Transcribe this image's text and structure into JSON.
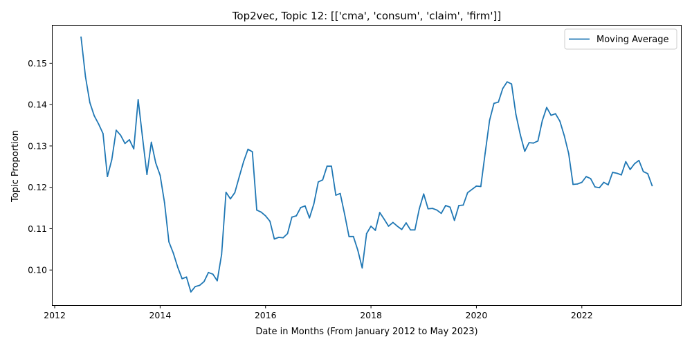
{
  "chart_data": {
    "type": "line",
    "title": "Top2vec, Topic 12: [['cma', 'consum', 'claim', 'firm']]",
    "xlabel": "Date in Months (From January 2012 to May 2023)",
    "ylabel": "Topic Proportion",
    "xlim": [
      2011.96,
      2023.88
    ],
    "ylim": [
      0.0915,
      0.1591
    ],
    "x_ticks": [
      2012,
      2014,
      2016,
      2018,
      2020,
      2022
    ],
    "x_tick_labels": [
      "2012",
      "2014",
      "2016",
      "2018",
      "2020",
      "2022"
    ],
    "y_ticks": [
      0.1,
      0.11,
      0.12,
      0.13,
      0.14,
      0.15
    ],
    "y_tick_labels": [
      "0.10",
      "0.11",
      "0.12",
      "0.13",
      "0.14",
      "0.15"
    ],
    "legend": {
      "position": "top-right"
    },
    "grid": false,
    "series": [
      {
        "name": "Moving Average",
        "color": "#1f77b4",
        "x": [
          "2012-07",
          "2012-08",
          "2012-09",
          "2012-10",
          "2012-11",
          "2012-12",
          "2013-01",
          "2013-02",
          "2013-03",
          "2013-04",
          "2013-05",
          "2013-06",
          "2013-07",
          "2013-08",
          "2013-09",
          "2013-10",
          "2013-11",
          "2013-12",
          "2014-01",
          "2014-02",
          "2014-03",
          "2014-04",
          "2014-05",
          "2014-06",
          "2014-07",
          "2014-08",
          "2014-09",
          "2014-10",
          "2014-11",
          "2014-12",
          "2015-01",
          "2015-02",
          "2015-03",
          "2015-04",
          "2015-05",
          "2015-06",
          "2015-07",
          "2015-08",
          "2015-09",
          "2015-10",
          "2015-11",
          "2015-12",
          "2016-01",
          "2016-02",
          "2016-03",
          "2016-04",
          "2016-05",
          "2016-06",
          "2016-07",
          "2016-08",
          "2016-09",
          "2016-10",
          "2016-11",
          "2016-12",
          "2017-01",
          "2017-02",
          "2017-03",
          "2017-04",
          "2017-05",
          "2017-06",
          "2017-07",
          "2017-08",
          "2017-09",
          "2017-10",
          "2017-11",
          "2017-12",
          "2018-01",
          "2018-02",
          "2018-03",
          "2018-04",
          "2018-05",
          "2018-06",
          "2018-07",
          "2018-08",
          "2018-09",
          "2018-10",
          "2018-11",
          "2018-12",
          "2019-01",
          "2019-02",
          "2019-03",
          "2019-04",
          "2019-05",
          "2019-06",
          "2019-07",
          "2019-08",
          "2019-09",
          "2019-10",
          "2019-11",
          "2019-12",
          "2020-01",
          "2020-02",
          "2020-03",
          "2020-04",
          "2020-05",
          "2020-06",
          "2020-07",
          "2020-08",
          "2020-09",
          "2020-10",
          "2020-11",
          "2020-12",
          "2021-01",
          "2021-02",
          "2021-03",
          "2021-04",
          "2021-05",
          "2021-06",
          "2021-07",
          "2021-08",
          "2021-09",
          "2021-10",
          "2021-11",
          "2021-12",
          "2022-01",
          "2022-02",
          "2022-03",
          "2022-04",
          "2022-05",
          "2022-06",
          "2022-07",
          "2022-08",
          "2022-09",
          "2022-10",
          "2022-11",
          "2022-12",
          "2023-01",
          "2023-02",
          "2023-03",
          "2023-04",
          "2023-05"
        ],
        "values": [
          0.1563,
          0.1468,
          0.1405,
          0.1373,
          0.1353,
          0.133,
          0.1226,
          0.1267,
          0.1338,
          0.1326,
          0.1306,
          0.1315,
          0.1293,
          0.1412,
          0.132,
          0.1231,
          0.1309,
          0.1259,
          0.1229,
          0.1163,
          0.1068,
          0.1041,
          0.1007,
          0.0979,
          0.0983,
          0.0947,
          0.096,
          0.0963,
          0.0972,
          0.0994,
          0.099,
          0.0974,
          0.1038,
          0.1188,
          0.1172,
          0.1187,
          0.1225,
          0.1262,
          0.1292,
          0.1286,
          0.1145,
          0.114,
          0.1131,
          0.1118,
          0.1075,
          0.1079,
          0.1078,
          0.1088,
          0.1128,
          0.1131,
          0.1151,
          0.1155,
          0.1126,
          0.116,
          0.1213,
          0.1218,
          0.1251,
          0.1251,
          0.1181,
          0.1185,
          0.1135,
          0.1081,
          0.1081,
          0.1048,
          0.1005,
          0.1088,
          0.1106,
          0.1096,
          0.1139,
          0.1123,
          0.1106,
          0.1115,
          0.1106,
          0.1098,
          0.1114,
          0.1097,
          0.1097,
          0.1148,
          0.1184,
          0.1148,
          0.1149,
          0.1145,
          0.1137,
          0.1156,
          0.1152,
          0.112,
          0.1156,
          0.1157,
          0.1187,
          0.1195,
          0.1203,
          0.1202,
          0.1283,
          0.1362,
          0.1403,
          0.1406,
          0.1439,
          0.1455,
          0.145,
          0.1376,
          0.1327,
          0.1287,
          0.1308,
          0.1307,
          0.1312,
          0.1361,
          0.1393,
          0.1374,
          0.1378,
          0.136,
          0.1325,
          0.1282,
          0.1207,
          0.1208,
          0.1212,
          0.1226,
          0.1221,
          0.1201,
          0.1199,
          0.1212,
          0.1206,
          0.1236,
          0.1234,
          0.123,
          0.1262,
          0.1243,
          0.1257,
          0.1265,
          0.1238,
          0.1233,
          0.1204
        ]
      }
    ]
  }
}
